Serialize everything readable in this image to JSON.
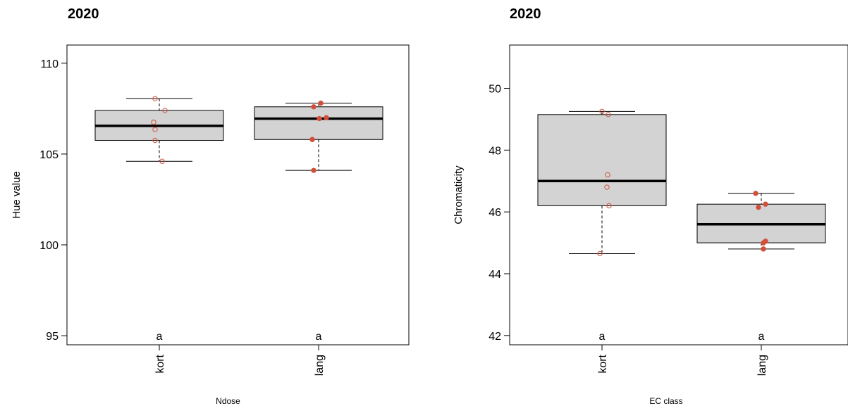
{
  "colors": {
    "box_fill": "#d3d3d3",
    "point": "#d24f3a",
    "median": "#000000",
    "frame": "#000000"
  },
  "chart_data": [
    {
      "type": "box",
      "title": "2020",
      "xlabel": "Ndose",
      "ylabel": "Hue value",
      "ylim": [
        94.5,
        111
      ],
      "yticks": [
        95,
        100,
        105,
        110
      ],
      "categories": [
        "kort",
        "lang"
      ],
      "significance_letters": [
        "a",
        "a"
      ],
      "boxes": [
        {
          "whisker_low": 104.6,
          "q1": 105.75,
          "median": 106.55,
          "q3": 107.4,
          "whisker_high": 108.05
        },
        {
          "whisker_low": 104.1,
          "q1": 105.8,
          "median": 106.95,
          "q3": 107.6,
          "whisker_high": 107.8
        }
      ],
      "points": [
        {
          "category": "kort",
          "jitter": -0.06,
          "y": 108.05,
          "filled": false
        },
        {
          "category": "kort",
          "jitter": 0.08,
          "y": 107.4,
          "filled": false
        },
        {
          "category": "kort",
          "jitter": -0.08,
          "y": 106.75,
          "filled": false
        },
        {
          "category": "kort",
          "jitter": -0.06,
          "y": 106.35,
          "filled": false
        },
        {
          "category": "kort",
          "jitter": -0.06,
          "y": 105.75,
          "filled": false
        },
        {
          "category": "kort",
          "jitter": 0.04,
          "y": 104.6,
          "filled": false
        },
        {
          "category": "lang",
          "jitter": -0.07,
          "y": 107.6,
          "filled": true
        },
        {
          "category": "lang",
          "jitter": 0.03,
          "y": 107.8,
          "filled": true
        },
        {
          "category": "lang",
          "jitter": 0.01,
          "y": 106.95,
          "filled": true
        },
        {
          "category": "lang",
          "jitter": 0.11,
          "y": 107.0,
          "filled": true
        },
        {
          "category": "lang",
          "jitter": -0.09,
          "y": 105.8,
          "filled": true
        },
        {
          "category": "lang",
          "jitter": -0.07,
          "y": 104.1,
          "filled": true
        }
      ]
    },
    {
      "type": "box",
      "title": "2020",
      "xlabel": "EC class",
      "ylabel": "Chromaticity",
      "ylim": [
        41.7,
        51.4
      ],
      "yticks": [
        42,
        44,
        46,
        48,
        50
      ],
      "categories": [
        "kort",
        "lang"
      ],
      "significance_letters": [
        "a",
        "a"
      ],
      "boxes": [
        {
          "whisker_low": 44.65,
          "q1": 46.2,
          "median": 47.0,
          "q3": 49.15,
          "whisker_high": 49.25
        },
        {
          "whisker_low": 44.8,
          "q1": 45.0,
          "median": 45.6,
          "q3": 46.25,
          "whisker_high": 46.6
        }
      ],
      "points": [
        {
          "category": "kort",
          "jitter": 0.0,
          "y": 49.25,
          "filled": false
        },
        {
          "category": "kort",
          "jitter": 0.09,
          "y": 49.15,
          "filled": false
        },
        {
          "category": "kort",
          "jitter": 0.08,
          "y": 47.2,
          "filled": false
        },
        {
          "category": "kort",
          "jitter": 0.07,
          "y": 46.8,
          "filled": false
        },
        {
          "category": "kort",
          "jitter": 0.1,
          "y": 46.2,
          "filled": false
        },
        {
          "category": "kort",
          "jitter": -0.03,
          "y": 44.65,
          "filled": false
        },
        {
          "category": "lang",
          "jitter": -0.08,
          "y": 46.6,
          "filled": true
        },
        {
          "category": "lang",
          "jitter": -0.04,
          "y": 46.15,
          "filled": true
        },
        {
          "category": "lang",
          "jitter": 0.06,
          "y": 46.25,
          "filled": true
        },
        {
          "category": "lang",
          "jitter": 0.06,
          "y": 45.05,
          "filled": true
        },
        {
          "category": "lang",
          "jitter": 0.03,
          "y": 45.0,
          "filled": true
        },
        {
          "category": "lang",
          "jitter": 0.03,
          "y": 44.8,
          "filled": true
        }
      ]
    }
  ]
}
